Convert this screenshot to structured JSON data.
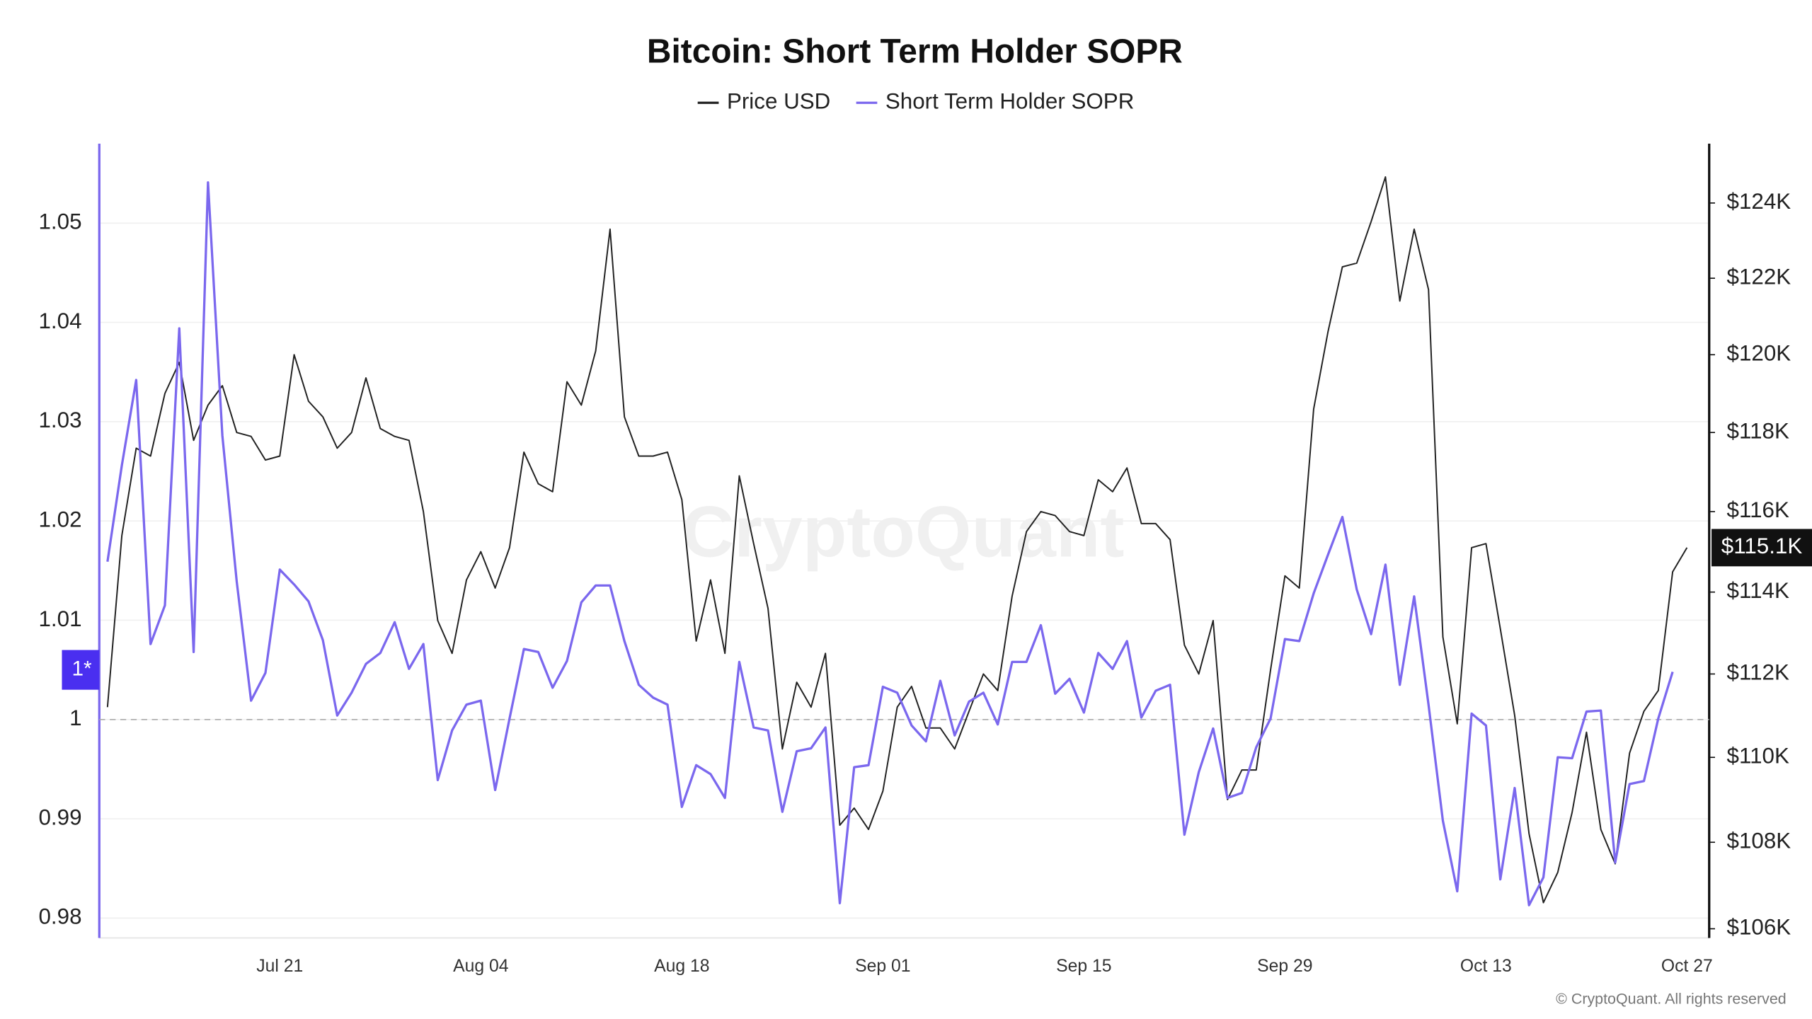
{
  "chart_data": {
    "type": "line",
    "title": "Bitcoin: Short Term Holder SOPR",
    "categories": [
      null,
      null,
      null,
      null,
      null,
      null,
      null,
      null,
      null,
      null,
      null,
      null,
      "Jul 21",
      null,
      null,
      null,
      null,
      null,
      null,
      null,
      null,
      null,
      null,
      null,
      null,
      null,
      "Aug 04",
      null,
      null,
      null,
      null,
      null,
      null,
      null,
      null,
      null,
      null,
      null,
      null,
      null,
      "Aug 18",
      null,
      null,
      null,
      null,
      null,
      null,
      null,
      null,
      null,
      null,
      null,
      null,
      null,
      "Sep 01",
      null,
      null,
      null,
      null,
      null,
      null,
      null,
      null,
      null,
      null,
      null,
      null,
      null,
      "Sep 15",
      null,
      null,
      null,
      null,
      null,
      null,
      null,
      null,
      null,
      null,
      null,
      null,
      null,
      "Sep 29",
      null,
      null,
      null,
      null,
      null,
      null,
      null,
      null,
      null,
      null,
      null,
      null,
      null,
      "Oct 13",
      null,
      null,
      null,
      null,
      null,
      null,
      null,
      null,
      null,
      null,
      null,
      null,
      null,
      "Oct 27"
    ],
    "series": [
      {
        "name": "Price USD",
        "color": "#222222",
        "axis": "y2",
        "values": [
          111200,
          115400,
          117600,
          117400,
          119000,
          119800,
          117800,
          118700,
          119200,
          118000,
          117900,
          117300,
          117400,
          120000,
          118800,
          118400,
          117600,
          118000,
          119400,
          118100,
          117900,
          117800,
          116000,
          113300,
          112500,
          114300,
          115000,
          114100,
          115100,
          117500,
          116700,
          116500,
          119300,
          118700,
          120100,
          123300,
          118400,
          117400,
          117400,
          117500,
          116300,
          112800,
          114300,
          112500,
          116900,
          115200,
          113600,
          110200,
          111800,
          111200,
          112500,
          108400,
          108800,
          108300,
          109200,
          111200,
          111700,
          110700,
          110700,
          110200,
          111100,
          112000,
          111600,
          113900,
          115500,
          116000,
          115900,
          115500,
          115400,
          116800,
          116500,
          117100,
          115700,
          115700,
          115300,
          112700,
          112000,
          113300,
          109000,
          109700,
          109700,
          112100,
          114400,
          114100,
          118600,
          120600,
          122300,
          122400,
          123500,
          124700,
          121400,
          123300,
          121700,
          112900,
          110800,
          115100,
          115200,
          113100,
          111000,
          108200,
          106600,
          107300,
          108700,
          110600,
          108300,
          107500,
          110100,
          111100,
          111600,
          114500,
          115100
        ]
      },
      {
        "name": "Short Term Holder SOPR",
        "color": "#7b68ee",
        "values": [
          1.0159,
          1.0256,
          1.0342,
          1.0076,
          1.0115,
          1.0394,
          1.0068,
          1.0541,
          1.0286,
          1.0139,
          1.0019,
          1.0047,
          1.0151,
          1.0136,
          1.0119,
          1.008,
          1.0004,
          1.0027,
          1.0056,
          1.0067,
          1.0098,
          1.0051,
          1.0076,
          0.9939,
          0.9989,
          1.0015,
          1.0019,
          0.9929,
          1.0001,
          1.0071,
          1.0068,
          1.0032,
          1.0059,
          1.0118,
          1.0135,
          1.0135,
          1.0079,
          1.0035,
          1.0022,
          1.0015,
          0.9912,
          0.9954,
          0.9945,
          0.9921,
          1.0058,
          0.9992,
          0.9989,
          0.9907,
          0.9968,
          0.9971,
          0.9992,
          0.9815,
          0.9952,
          0.9954,
          1.0033,
          1.0027,
          0.9994,
          0.9978,
          1.0039,
          0.9984,
          1.0018,
          1.0027,
          0.9995,
          1.0058,
          1.0058,
          1.0095,
          1.0026,
          1.0041,
          1.0007,
          1.0067,
          1.0051,
          1.0079,
          1.0002,
          1.0029,
          1.0035,
          0.9884,
          0.9947,
          0.9991,
          0.9921,
          0.9926,
          0.9972,
          1.0001,
          1.0081,
          1.0079,
          1.0127,
          1.0166,
          1.0204,
          1.0131,
          1.0086,
          1.0156,
          1.0035,
          1.0124,
          1.0015,
          0.9898,
          0.9827,
          1.0006,
          0.9994,
          0.9839,
          0.9931,
          0.9813,
          0.9841,
          0.9962,
          0.9961,
          1.0008,
          1.0009,
          0.9856,
          0.9935,
          0.9938,
          1.0001,
          1.0048,
          null
        ]
      }
    ],
    "ylim": [
      0.978,
      1.058
    ],
    "yticks": [
      0.98,
      0.99,
      1,
      1.01,
      1.02,
      1.03,
      1.04,
      1.05
    ],
    "y2lim": [
      105790,
      125600
    ],
    "y2log": true,
    "y2ticks": [
      {
        "value": 106000,
        "label": "$106K"
      },
      {
        "value": 108000,
        "label": "$108K"
      },
      {
        "value": 110000,
        "label": "$110K"
      },
      {
        "value": 112000,
        "label": "$112K"
      },
      {
        "value": 114000,
        "label": "$114K"
      },
      {
        "value": 116000,
        "label": "$116K"
      },
      {
        "value": 118000,
        "label": "$118K"
      },
      {
        "value": 120000,
        "label": "$120K"
      },
      {
        "value": 122000,
        "label": "$122K"
      },
      {
        "value": 124000,
        "label": "$124K"
      }
    ],
    "reference_line": 1,
    "y_marker": {
      "value": 1.005,
      "label": "1*"
    },
    "y2_marker": {
      "value": 115100,
      "label": "$115.1K"
    },
    "grid": true,
    "legend": "top",
    "watermark": "CryptoQuant",
    "source": "© CryptoQuant. All rights reserved"
  }
}
